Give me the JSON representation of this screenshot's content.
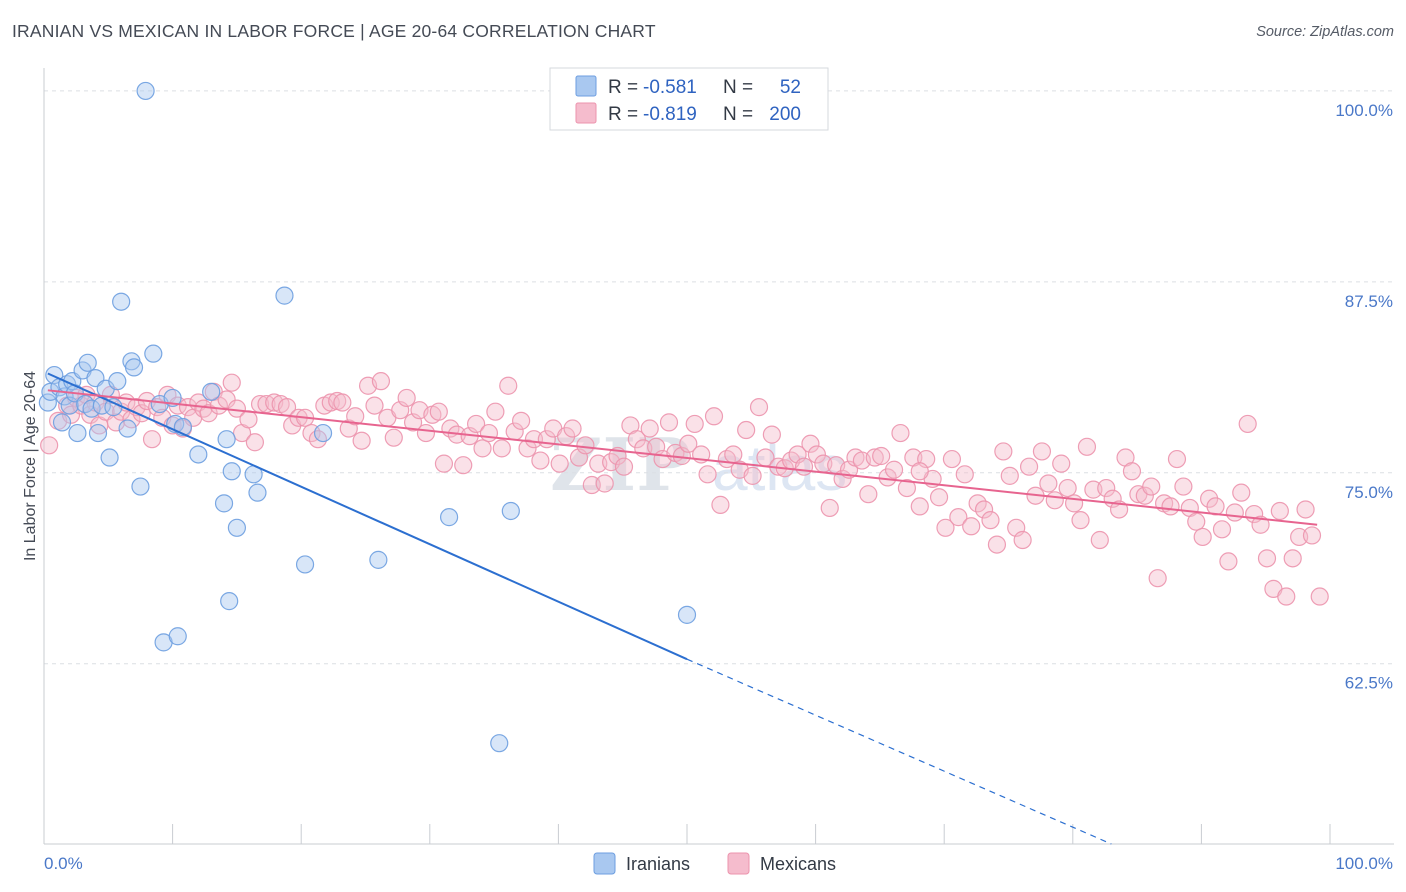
{
  "title": "IRANIAN VS MEXICAN IN LABOR FORCE | AGE 20-64 CORRELATION CHART",
  "source": "Source: ZipAtlas.com",
  "watermark": {
    "zip": "ZIP",
    "atlas": "atlas"
  },
  "legend": {
    "rows": [
      {
        "r_label": "R =",
        "r_value": "-0.581",
        "n_label": "N =",
        "n_value": "52",
        "color": "#a9c8f0"
      },
      {
        "r_label": "R =",
        "r_value": "-0.819",
        "n_label": "N =",
        "n_value": "200",
        "color": "#f5bccd"
      }
    ]
  },
  "bottom_legend": [
    {
      "label": "Iranians",
      "color": "#a9c8f0"
    },
    {
      "label": "Mexicans",
      "color": "#f5bccd"
    }
  ],
  "chart_data": {
    "type": "scatter",
    "title": "IRANIAN VS MEXICAN IN LABOR FORCE | AGE 20-64 CORRELATION CHART",
    "xlabel": "",
    "ylabel": "In Labor Force | Age 20-64",
    "xlim": [
      0,
      100
    ],
    "ylim": [
      50.7,
      101.5
    ],
    "x_tick_labels": [
      "0.0%",
      "100.0%"
    ],
    "y_ticks": [
      62.5,
      75.0,
      87.5,
      100.0
    ],
    "y_tick_labels": [
      "62.5%",
      "75.0%",
      "87.5%",
      "100.0%"
    ],
    "grid": true,
    "legend_position": "top-center",
    "series": [
      {
        "name": "Iranians",
        "color": "#a9c8f0",
        "stroke": "#6d9ee0",
        "line_color": "#2c6fd0",
        "r": -0.581,
        "n": 52,
        "trend": {
          "x0": 0.3,
          "y0": 81.5,
          "x1": 50.0,
          "y1": 62.8,
          "dash_to_x": 83.0,
          "dash_to_y": 50.7
        },
        "points": [
          [
            0.3,
            79.6
          ],
          [
            0.5,
            80.3
          ],
          [
            0.8,
            81.4
          ],
          [
            1.2,
            80.6
          ],
          [
            1.4,
            78.3
          ],
          [
            1.6,
            80.0
          ],
          [
            1.8,
            80.8
          ],
          [
            2.0,
            79.4
          ],
          [
            2.2,
            81.0
          ],
          [
            2.4,
            80.2
          ],
          [
            2.6,
            77.6
          ],
          [
            3.0,
            81.7
          ],
          [
            3.2,
            79.5
          ],
          [
            3.4,
            82.2
          ],
          [
            3.7,
            79.2
          ],
          [
            4.0,
            81.2
          ],
          [
            4.2,
            77.6
          ],
          [
            4.5,
            79.4
          ],
          [
            4.8,
            80.5
          ],
          [
            5.1,
            76.0
          ],
          [
            5.4,
            79.3
          ],
          [
            5.7,
            81.0
          ],
          [
            6.0,
            86.2
          ],
          [
            6.5,
            77.9
          ],
          [
            6.8,
            82.3
          ],
          [
            7.0,
            81.9
          ],
          [
            7.5,
            74.1
          ],
          [
            7.9,
            100.0
          ],
          [
            8.5,
            82.8
          ],
          [
            9.0,
            79.5
          ],
          [
            9.3,
            63.9
          ],
          [
            10.0,
            79.9
          ],
          [
            10.2,
            78.2
          ],
          [
            10.4,
            64.3
          ],
          [
            10.8,
            78.0
          ],
          [
            12.0,
            76.2
          ],
          [
            13.0,
            80.3
          ],
          [
            14.0,
            73.0
          ],
          [
            14.2,
            77.2
          ],
          [
            14.4,
            66.6
          ],
          [
            14.6,
            75.1
          ],
          [
            15.0,
            71.4
          ],
          [
            16.3,
            74.9
          ],
          [
            16.6,
            73.7
          ],
          [
            18.7,
            86.6
          ],
          [
            20.3,
            69.0
          ],
          [
            21.7,
            77.6
          ],
          [
            26.0,
            69.3
          ],
          [
            31.5,
            72.1
          ],
          [
            36.3,
            72.5
          ],
          [
            35.4,
            57.3
          ],
          [
            50.0,
            65.7
          ]
        ]
      },
      {
        "name": "Mexicans",
        "color": "#f5bccd",
        "stroke": "#ec93ad",
        "line_color": "#e7648f",
        "r": -0.819,
        "n": 200,
        "trend": {
          "x0": 0.3,
          "y0": 80.4,
          "x1": 99.0,
          "y1": 71.6
        },
        "points": [
          [
            0.4,
            76.8
          ],
          [
            1.1,
            78.4
          ],
          [
            1.8,
            79.4
          ],
          [
            2.1,
            78.8
          ],
          [
            2.5,
            79.9
          ],
          [
            2.9,
            79.4
          ],
          [
            3.3,
            80.1
          ],
          [
            3.6,
            78.8
          ],
          [
            4.0,
            79.6
          ],
          [
            4.3,
            78.1
          ],
          [
            4.8,
            79.0
          ],
          [
            5.2,
            80.1
          ],
          [
            5.6,
            78.3
          ],
          [
            6.0,
            79.0
          ],
          [
            6.4,
            79.6
          ],
          [
            6.8,
            78.5
          ],
          [
            7.2,
            79.3
          ],
          [
            7.6,
            78.9
          ],
          [
            8.0,
            79.7
          ],
          [
            8.4,
            77.2
          ],
          [
            8.8,
            79.3
          ],
          [
            9.2,
            78.6
          ],
          [
            9.6,
            80.1
          ],
          [
            10.0,
            78.1
          ],
          [
            10.4,
            79.4
          ],
          [
            10.8,
            77.9
          ],
          [
            11.2,
            79.3
          ],
          [
            11.6,
            78.6
          ],
          [
            12.0,
            79.6
          ],
          [
            12.4,
            79.2
          ],
          [
            12.8,
            78.9
          ],
          [
            13.2,
            80.3
          ],
          [
            13.6,
            79.4
          ],
          [
            14.2,
            79.8
          ],
          [
            14.6,
            80.9
          ],
          [
            15.0,
            79.2
          ],
          [
            15.4,
            77.6
          ],
          [
            15.9,
            78.5
          ],
          [
            16.4,
            77.0
          ],
          [
            16.8,
            79.5
          ],
          [
            17.3,
            79.5
          ],
          [
            17.9,
            79.6
          ],
          [
            18.4,
            79.5
          ],
          [
            18.9,
            79.3
          ],
          [
            19.3,
            78.1
          ],
          [
            19.8,
            78.6
          ],
          [
            20.3,
            78.6
          ],
          [
            20.8,
            77.6
          ],
          [
            21.3,
            77.2
          ],
          [
            21.8,
            79.4
          ],
          [
            22.3,
            79.6
          ],
          [
            22.8,
            79.7
          ],
          [
            23.2,
            79.6
          ],
          [
            23.7,
            77.9
          ],
          [
            24.2,
            78.7
          ],
          [
            24.7,
            77.1
          ],
          [
            25.2,
            80.7
          ],
          [
            25.7,
            79.4
          ],
          [
            26.2,
            81.0
          ],
          [
            26.7,
            78.6
          ],
          [
            27.2,
            77.3
          ],
          [
            27.7,
            79.1
          ],
          [
            28.2,
            79.9
          ],
          [
            28.7,
            78.3
          ],
          [
            29.2,
            79.1
          ],
          [
            29.7,
            77.6
          ],
          [
            30.2,
            78.8
          ],
          [
            30.7,
            79.0
          ],
          [
            31.1,
            75.6
          ],
          [
            31.6,
            77.9
          ],
          [
            32.1,
            77.5
          ],
          [
            32.6,
            75.5
          ],
          [
            33.1,
            77.4
          ],
          [
            33.6,
            78.2
          ],
          [
            34.1,
            76.6
          ],
          [
            34.6,
            77.6
          ],
          [
            35.1,
            79.0
          ],
          [
            35.6,
            76.6
          ],
          [
            36.1,
            80.7
          ],
          [
            36.6,
            77.7
          ],
          [
            37.1,
            78.4
          ],
          [
            37.6,
            76.6
          ],
          [
            38.1,
            77.2
          ],
          [
            38.6,
            75.8
          ],
          [
            39.1,
            77.2
          ],
          [
            39.6,
            77.9
          ],
          [
            40.1,
            75.6
          ],
          [
            40.6,
            77.4
          ],
          [
            41.1,
            77.9
          ],
          [
            41.6,
            76.0
          ],
          [
            42.1,
            76.8
          ],
          [
            42.6,
            74.2
          ],
          [
            43.1,
            75.6
          ],
          [
            43.6,
            74.3
          ],
          [
            44.1,
            75.7
          ],
          [
            44.6,
            76.1
          ],
          [
            45.1,
            75.4
          ],
          [
            45.6,
            78.1
          ],
          [
            46.1,
            77.2
          ],
          [
            46.6,
            76.6
          ],
          [
            47.1,
            77.9
          ],
          [
            47.6,
            76.7
          ],
          [
            48.1,
            75.9
          ],
          [
            48.6,
            78.3
          ],
          [
            49.1,
            76.3
          ],
          [
            49.6,
            76.1
          ],
          [
            50.1,
            76.9
          ],
          [
            50.6,
            78.2
          ],
          [
            51.1,
            76.2
          ],
          [
            51.6,
            74.9
          ],
          [
            52.1,
            78.7
          ],
          [
            52.6,
            72.9
          ],
          [
            53.1,
            75.9
          ],
          [
            53.6,
            76.2
          ],
          [
            54.1,
            75.2
          ],
          [
            54.6,
            77.8
          ],
          [
            55.1,
            74.8
          ],
          [
            55.6,
            79.3
          ],
          [
            56.1,
            76.0
          ],
          [
            56.6,
            77.5
          ],
          [
            57.1,
            75.4
          ],
          [
            57.6,
            75.3
          ],
          [
            58.1,
            75.8
          ],
          [
            58.6,
            76.2
          ],
          [
            59.1,
            75.4
          ],
          [
            59.6,
            76.9
          ],
          [
            60.1,
            76.2
          ],
          [
            60.6,
            75.6
          ],
          [
            61.1,
            72.7
          ],
          [
            61.6,
            75.5
          ],
          [
            62.1,
            74.6
          ],
          [
            62.6,
            75.2
          ],
          [
            63.1,
            76.0
          ],
          [
            63.6,
            75.8
          ],
          [
            64.1,
            73.6
          ],
          [
            64.6,
            76.0
          ],
          [
            65.1,
            76.1
          ],
          [
            65.6,
            74.7
          ],
          [
            66.1,
            75.2
          ],
          [
            66.6,
            77.6
          ],
          [
            67.1,
            74.0
          ],
          [
            67.6,
            76.0
          ],
          [
            68.1,
            72.8
          ],
          [
            68.6,
            75.9
          ],
          [
            69.1,
            74.6
          ],
          [
            69.6,
            73.4
          ],
          [
            70.1,
            71.4
          ],
          [
            70.6,
            75.9
          ],
          [
            71.1,
            72.1
          ],
          [
            71.6,
            74.9
          ],
          [
            72.1,
            71.5
          ],
          [
            72.6,
            73.0
          ],
          [
            73.1,
            72.6
          ],
          [
            73.6,
            71.9
          ],
          [
            74.1,
            70.3
          ],
          [
            74.6,
            76.4
          ],
          [
            75.1,
            74.8
          ],
          [
            75.6,
            71.4
          ],
          [
            76.1,
            70.6
          ],
          [
            76.6,
            75.4
          ],
          [
            77.1,
            73.5
          ],
          [
            77.6,
            76.4
          ],
          [
            78.1,
            74.3
          ],
          [
            78.6,
            73.2
          ],
          [
            79.1,
            75.6
          ],
          [
            79.6,
            74.0
          ],
          [
            80.1,
            73.0
          ],
          [
            80.6,
            71.9
          ],
          [
            81.1,
            76.7
          ],
          [
            81.6,
            73.9
          ],
          [
            82.1,
            70.6
          ],
          [
            82.6,
            74.0
          ],
          [
            83.1,
            73.3
          ],
          [
            83.6,
            72.6
          ],
          [
            84.1,
            76.0
          ],
          [
            84.6,
            75.1
          ],
          [
            85.1,
            73.6
          ],
          [
            85.6,
            73.5
          ],
          [
            86.1,
            74.1
          ],
          [
            86.6,
            68.1
          ],
          [
            87.1,
            73.0
          ],
          [
            87.6,
            72.8
          ],
          [
            88.1,
            75.9
          ],
          [
            88.6,
            74.1
          ],
          [
            89.1,
            72.7
          ],
          [
            89.6,
            71.8
          ],
          [
            90.1,
            70.8
          ],
          [
            90.6,
            73.3
          ],
          [
            91.1,
            72.8
          ],
          [
            91.6,
            71.3
          ],
          [
            92.1,
            69.2
          ],
          [
            92.6,
            72.4
          ],
          [
            93.1,
            73.7
          ],
          [
            93.6,
            78.2
          ],
          [
            94.1,
            72.3
          ],
          [
            94.6,
            71.6
          ],
          [
            95.1,
            69.4
          ],
          [
            95.6,
            67.4
          ],
          [
            96.1,
            72.5
          ],
          [
            96.6,
            66.9
          ],
          [
            97.1,
            69.4
          ],
          [
            97.6,
            70.8
          ],
          [
            98.1,
            72.6
          ],
          [
            98.6,
            70.9
          ],
          [
            99.2,
            66.9
          ],
          [
            68.1,
            75.1
          ]
        ]
      }
    ]
  }
}
